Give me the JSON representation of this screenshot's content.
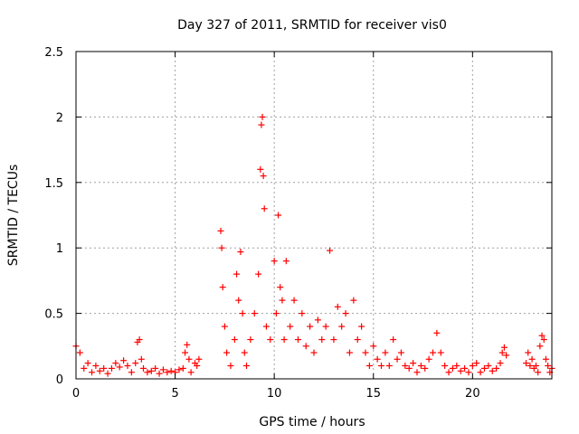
{
  "chart_data": {
    "type": "scatter",
    "title": "Day 327 of 2011, SRMTID for receiver vis0",
    "xlabel": "GPS time / hours",
    "ylabel": "SRMTID / TECUs",
    "xlim": [
      0,
      24
    ],
    "ylim": [
      0,
      2.5
    ],
    "xticks": [
      0,
      5,
      10,
      15,
      20
    ],
    "xtick_labels": [
      "0",
      "5",
      "10",
      "15",
      "20"
    ],
    "yticks": [
      0,
      0.5,
      1,
      1.5,
      2,
      2.5
    ],
    "ytick_labels": [
      "0",
      "0.5",
      "1",
      "1.5",
      "2",
      "2.5"
    ],
    "grid": true,
    "marker": "+",
    "series": [
      {
        "name": "SRMTID vis0",
        "color": "#ff0000",
        "segments": [
          {
            "x": [
              0.0,
              0.2,
              0.4,
              0.6,
              0.8,
              1.0,
              1.2,
              1.4,
              1.6,
              1.8,
              2.0,
              2.2,
              2.4,
              2.6,
              2.8,
              3.0,
              3.1,
              3.2,
              3.3,
              3.4,
              3.6,
              3.8,
              4.0,
              4.2,
              4.4,
              4.6,
              4.8,
              5.0,
              5.2,
              5.4,
              5.5,
              5.6,
              5.7,
              5.8,
              6.0,
              6.1,
              6.2
            ],
            "y": [
              0.25,
              0.2,
              0.08,
              0.12,
              0.05,
              0.1,
              0.06,
              0.08,
              0.04,
              0.08,
              0.12,
              0.09,
              0.14,
              0.1,
              0.05,
              0.12,
              0.28,
              0.3,
              0.15,
              0.08,
              0.05,
              0.06,
              0.08,
              0.04,
              0.07,
              0.05,
              0.06,
              0.05,
              0.07,
              0.08,
              0.2,
              0.26,
              0.15,
              0.05,
              0.12,
              0.1,
              0.15
            ]
          },
          {
            "x": [
              7.3,
              7.35,
              7.4,
              7.5,
              7.6,
              7.8,
              8.0,
              8.1,
              8.2,
              8.3,
              8.4,
              8.5,
              8.6,
              8.8,
              9.0,
              9.2,
              9.3,
              9.35,
              9.4,
              9.45,
              9.5,
              9.6,
              9.8,
              10.0,
              10.1,
              10.2,
              10.3,
              10.4,
              10.5,
              10.6,
              10.8,
              11.0,
              11.2,
              11.4,
              11.6,
              11.8,
              12.0,
              12.2,
              12.4,
              12.6,
              12.8,
              13.0,
              13.2,
              13.4,
              13.6,
              13.8,
              14.0,
              14.2,
              14.4,
              14.6,
              14.8,
              15.0,
              15.2,
              15.4,
              15.6,
              15.8,
              16.0,
              16.2,
              16.4,
              16.6,
              16.8,
              17.0,
              17.2,
              17.4,
              17.6,
              17.8,
              18.0,
              18.2,
              18.4,
              18.6,
              18.8,
              19.0,
              19.2,
              19.4,
              19.6,
              19.8,
              20.0,
              20.2,
              20.4,
              20.6,
              20.8,
              21.0,
              21.2,
              21.4,
              21.5,
              21.6,
              21.7
            ],
            "y": [
              1.13,
              1.0,
              0.7,
              0.4,
              0.2,
              0.1,
              0.3,
              0.8,
              0.6,
              0.97,
              0.5,
              0.2,
              0.1,
              0.3,
              0.5,
              0.8,
              1.6,
              1.94,
              2.0,
              1.55,
              1.3,
              0.4,
              0.3,
              0.9,
              0.5,
              1.25,
              0.7,
              0.6,
              0.3,
              0.9,
              0.4,
              0.6,
              0.3,
              0.5,
              0.25,
              0.4,
              0.2,
              0.45,
              0.3,
              0.4,
              0.98,
              0.3,
              0.55,
              0.4,
              0.5,
              0.2,
              0.6,
              0.3,
              0.4,
              0.2,
              0.1,
              0.25,
              0.15,
              0.1,
              0.2,
              0.1,
              0.3,
              0.15,
              0.2,
              0.1,
              0.08,
              0.12,
              0.05,
              0.1,
              0.08,
              0.15,
              0.2,
              0.35,
              0.2,
              0.1,
              0.05,
              0.08,
              0.1,
              0.06,
              0.08,
              0.05,
              0.1,
              0.12,
              0.05,
              0.08,
              0.1,
              0.06,
              0.08,
              0.12,
              0.2,
              0.24,
              0.18
            ]
          },
          {
            "x": [
              22.7,
              22.8,
              22.9,
              23.0,
              23.1,
              23.2,
              23.3,
              23.4,
              23.5,
              23.6,
              23.7,
              23.8,
              23.9,
              24.0
            ],
            "y": [
              0.12,
              0.2,
              0.1,
              0.15,
              0.08,
              0.1,
              0.05,
              0.25,
              0.33,
              0.3,
              0.15,
              0.1,
              0.05,
              0.08
            ]
          }
        ]
      }
    ]
  }
}
